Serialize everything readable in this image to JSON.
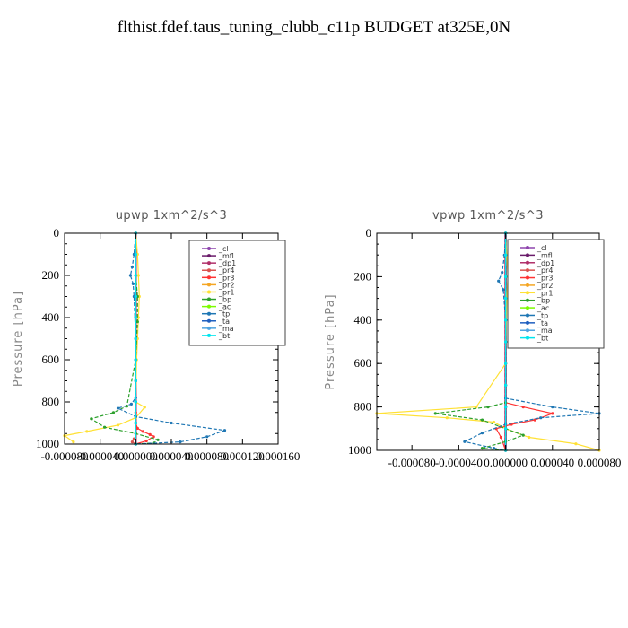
{
  "title": "flthist.fdef.taus_tuning_clubb_c11p  BUDGET at325E,0N",
  "chart_data": [
    {
      "type": "line",
      "title": "upwp   1xm^2/s^3",
      "ylabel": "Pressure [hPa]",
      "ylim": [
        1000,
        0
      ],
      "xlim": [
        -8e-05,
        0.00016
      ],
      "xticks": [
        -8e-05,
        -4e-05,
        0.0,
        4e-05,
        8e-05,
        0.00012,
        0.00016
      ],
      "xtick_labels": [
        "-0.000080",
        "-0.000040",
        "0.000000",
        "0.000040",
        "0.000080",
        "0.000120",
        "0.000160"
      ],
      "yticks": [
        0,
        200,
        400,
        600,
        800,
        1000
      ],
      "ytick_labels": [
        "0",
        "200",
        "400",
        "600",
        "800",
        "1000"
      ],
      "legend": [
        "_cl",
        "_mfl",
        "_dp1",
        "_pr4",
        "_pr3",
        "_pr2",
        "_pr1",
        "_bp",
        "_ac",
        "_tp",
        "_ta",
        "_ma",
        "_bt"
      ],
      "legend_position": "top-right",
      "series": [
        {
          "name": "_cl",
          "color": "#8e44ad",
          "x": [
            0,
            0,
            0,
            0,
            0,
            0,
            0,
            0,
            0,
            0,
            0
          ],
          "y": [
            0,
            100,
            200,
            300,
            400,
            500,
            600,
            700,
            800,
            900,
            1000
          ]
        },
        {
          "name": "_mfl",
          "color": "#6a1b6a",
          "x": [
            0,
            0,
            0,
            0,
            0,
            0,
            0,
            0,
            0,
            0,
            0
          ],
          "y": [
            0,
            100,
            200,
            300,
            400,
            500,
            600,
            700,
            800,
            900,
            1000
          ]
        },
        {
          "name": "_dp1",
          "color": "#b0306a",
          "x": [
            0,
            0,
            0,
            0,
            0,
            0,
            0,
            0,
            0,
            0,
            0
          ],
          "y": [
            0,
            100,
            200,
            300,
            400,
            500,
            600,
            700,
            800,
            900,
            1000
          ]
        },
        {
          "name": "_pr4",
          "color": "#d9534f",
          "x": [
            0,
            0,
            0,
            0,
            0,
            0,
            0,
            0,
            0,
            0,
            0,
            -2e-06,
            -4e-06,
            0.0
          ],
          "y": [
            0,
            100,
            200,
            300,
            400,
            500,
            600,
            700,
            800,
            900,
            950,
            975,
            990,
            1000
          ]
        },
        {
          "name": "_pr3",
          "color": "#ff3333",
          "x": [
            0,
            0,
            0,
            0,
            0,
            0,
            0,
            0,
            2e-06,
            8e-06,
            1.6e-05,
            2e-05,
            1.2e-05,
            0.0
          ],
          "y": [
            0,
            200,
            400,
            600,
            800,
            850,
            875,
            900,
            925,
            940,
            955,
            965,
            985,
            1000
          ]
        },
        {
          "name": "_pr2",
          "color": "#f5a623",
          "x": [
            0,
            0,
            0,
            0,
            0,
            0,
            0,
            0,
            0,
            0,
            0
          ],
          "y": [
            0,
            100,
            200,
            300,
            400,
            500,
            600,
            700,
            800,
            900,
            1000
          ]
        },
        {
          "name": "_pr1",
          "color": "#ffe135",
          "x": [
            0,
            2e-06,
            3e-06,
            4e-06,
            3e-06,
            2e-06,
            1e-06,
            0.0,
            1e-05,
            0.0,
            -2e-05,
            -5.5e-05,
            -8e-05,
            -7e-05
          ],
          "y": [
            0,
            100,
            200,
            300,
            400,
            500,
            600,
            800,
            825,
            875,
            910,
            940,
            960,
            990
          ]
        },
        {
          "name": "_bp",
          "color": "#2ca02c",
          "x": [
            0,
            0.0,
            2e-06,
            2e-06,
            0.0,
            -1e-05,
            -2.5e-05,
            -5e-05,
            -3.5e-05,
            0.0,
            2.5e-05,
            2e-05,
            0.0
          ],
          "y": [
            0,
            200,
            300,
            420,
            600,
            820,
            850,
            880,
            920,
            950,
            980,
            995,
            1000
          ]
        },
        {
          "name": "_ac",
          "color": "#7cfc00",
          "x": [
            0,
            0,
            0,
            0,
            0,
            0,
            0,
            0,
            0,
            0,
            0
          ],
          "y": [
            0,
            100,
            200,
            300,
            400,
            500,
            600,
            700,
            800,
            900,
            1000
          ]
        },
        {
          "name": "_tp",
          "color": "#1f77b4",
          "x": [
            0,
            -2e-06,
            -4e-06,
            -6e-06,
            -3e-06,
            -2e-06,
            0.0,
            0.0,
            -5e-06,
            -2e-05,
            0.0,
            4e-05,
            0.0001,
            8e-05,
            5e-05,
            0.0
          ],
          "y": [
            0,
            100,
            160,
            200,
            240,
            300,
            500,
            780,
            810,
            830,
            870,
            900,
            935,
            965,
            990,
            1000
          ]
        },
        {
          "name": "_ta",
          "color": "#1f5fbf",
          "x": [
            0,
            0,
            0,
            0,
            0,
            0,
            0,
            0,
            0,
            0,
            0
          ],
          "y": [
            0,
            100,
            200,
            300,
            400,
            500,
            600,
            700,
            800,
            900,
            1000
          ]
        },
        {
          "name": "_ma",
          "color": "#4fa3e0",
          "x": [
            0,
            0,
            0,
            0,
            0,
            0,
            0,
            0,
            0,
            0,
            0
          ],
          "y": [
            0,
            100,
            200,
            300,
            400,
            500,
            600,
            700,
            800,
            900,
            1000
          ]
        },
        {
          "name": "_bt",
          "color": "#00e5ee",
          "x": [
            0,
            0,
            0,
            0,
            0,
            0,
            0,
            0,
            0,
            0,
            0
          ],
          "y": [
            0,
            100,
            200,
            300,
            400,
            500,
            600,
            700,
            800,
            900,
            1000
          ]
        }
      ]
    },
    {
      "type": "line",
      "title": "vpwp   1xm^2/s^3",
      "ylabel": "Pressure [hPa]",
      "ylim": [
        1000,
        0
      ],
      "xlim": [
        -0.00011,
        8e-05
      ],
      "xticks": [
        -8e-05,
        -4e-05,
        0.0,
        4e-05,
        8e-05
      ],
      "xtick_labels": [
        "-0.000080",
        "-0.000040",
        "0.000000",
        "0.000040",
        "0.000080"
      ],
      "yticks": [
        0,
        200,
        400,
        600,
        800,
        1000
      ],
      "ytick_labels": [
        "0",
        "200",
        "400",
        "600",
        "800",
        "1000"
      ],
      "legend": [
        "_cl",
        "_mfl",
        "_dp1",
        "_pr4",
        "_pr3",
        "_pr2",
        "_pr1",
        "_bp",
        "_ac",
        "_tp",
        "_ta",
        "_ma",
        "_bt"
      ],
      "legend_position": "top-right",
      "series": [
        {
          "name": "_cl",
          "color": "#8e44ad",
          "x": [
            0,
            0,
            0,
            0,
            0,
            0,
            0,
            0,
            0,
            0,
            0
          ],
          "y": [
            0,
            100,
            200,
            300,
            400,
            500,
            600,
            700,
            800,
            900,
            1000
          ]
        },
        {
          "name": "_mfl",
          "color": "#6a1b6a",
          "x": [
            0,
            0,
            0,
            0,
            0,
            0,
            0,
            0,
            0,
            0,
            0
          ],
          "y": [
            0,
            100,
            200,
            300,
            400,
            500,
            600,
            700,
            800,
            900,
            1000
          ]
        },
        {
          "name": "_dp1",
          "color": "#b0306a",
          "x": [
            0,
            0,
            0,
            0,
            0,
            0,
            0,
            0,
            0,
            0,
            0
          ],
          "y": [
            0,
            100,
            200,
            300,
            400,
            500,
            600,
            700,
            800,
            900,
            1000
          ]
        },
        {
          "name": "_pr4",
          "color": "#d9534f",
          "x": [
            0,
            0,
            0,
            0,
            0,
            0,
            0,
            0,
            0,
            0,
            0
          ],
          "y": [
            0,
            100,
            200,
            300,
            400,
            500,
            600,
            700,
            800,
            900,
            1000
          ]
        },
        {
          "name": "_pr3",
          "color": "#ff3333",
          "x": [
            0,
            0,
            0,
            0.0,
            1.5e-05,
            4e-05,
            2.5e-05,
            5e-06,
            -8e-06,
            -4e-06,
            0.0
          ],
          "y": [
            0,
            200,
            400,
            780,
            800,
            830,
            860,
            880,
            900,
            940,
            1000
          ]
        },
        {
          "name": "_pr2",
          "color": "#f5a623",
          "x": [
            0,
            0,
            0,
            0,
            0,
            0,
            0,
            0,
            0,
            0,
            0
          ],
          "y": [
            0,
            100,
            200,
            300,
            400,
            500,
            600,
            700,
            800,
            900,
            1000
          ]
        },
        {
          "name": "_pr1",
          "color": "#ffe135",
          "x": [
            0,
            1e-06,
            2e-06,
            1e-06,
            0.0,
            -2.5e-05,
            -0.00011,
            -5e-05,
            -1e-05,
            0.0,
            2e-05,
            6e-05,
            8e-05
          ],
          "y": [
            0,
            100,
            200,
            300,
            600,
            800,
            830,
            850,
            870,
            900,
            940,
            970,
            1000
          ]
        },
        {
          "name": "_bp",
          "color": "#2ca02c",
          "x": [
            0,
            0,
            0,
            0.0,
            -1.5e-05,
            -6e-05,
            -2e-05,
            0.0,
            1.5e-05,
            0.0,
            -2e-05,
            0.0
          ],
          "y": [
            0,
            200,
            400,
            780,
            800,
            830,
            860,
            900,
            930,
            960,
            990,
            1000
          ]
        },
        {
          "name": "_ac",
          "color": "#7cfc00",
          "x": [
            0,
            0,
            0,
            0,
            0,
            0,
            0,
            0,
            0,
            0,
            0
          ],
          "y": [
            0,
            100,
            200,
            300,
            400,
            500,
            600,
            700,
            800,
            900,
            1000
          ]
        },
        {
          "name": "_tp",
          "color": "#1f77b4",
          "x": [
            0,
            -1e-06,
            -3e-06,
            -6e-06,
            -2e-06,
            0.0,
            0.0,
            4e-05,
            8e-05,
            3e-05,
            0.0,
            -2e-05,
            -3.5e-05,
            -1e-05,
            0.0
          ],
          "y": [
            0,
            100,
            180,
            220,
            260,
            400,
            760,
            800,
            830,
            850,
            880,
            920,
            960,
            990,
            1000
          ]
        },
        {
          "name": "_ta",
          "color": "#1f5fbf",
          "x": [
            0,
            0,
            0,
            0,
            0,
            0,
            0,
            0,
            0,
            0,
            0
          ],
          "y": [
            0,
            100,
            200,
            300,
            400,
            500,
            600,
            700,
            800,
            900,
            1000
          ]
        },
        {
          "name": "_ma",
          "color": "#4fa3e0",
          "x": [
            0,
            0,
            0,
            0,
            0,
            0,
            0,
            0,
            0,
            0,
            0
          ],
          "y": [
            0,
            100,
            200,
            300,
            400,
            500,
            600,
            700,
            800,
            900,
            1000
          ]
        },
        {
          "name": "_bt",
          "color": "#00e5ee",
          "x": [
            0,
            0,
            0,
            0,
            0,
            0,
            0,
            0,
            0,
            0,
            0
          ],
          "y": [
            0,
            100,
            200,
            300,
            400,
            500,
            600,
            700,
            800,
            900,
            1000
          ]
        }
      ]
    }
  ]
}
